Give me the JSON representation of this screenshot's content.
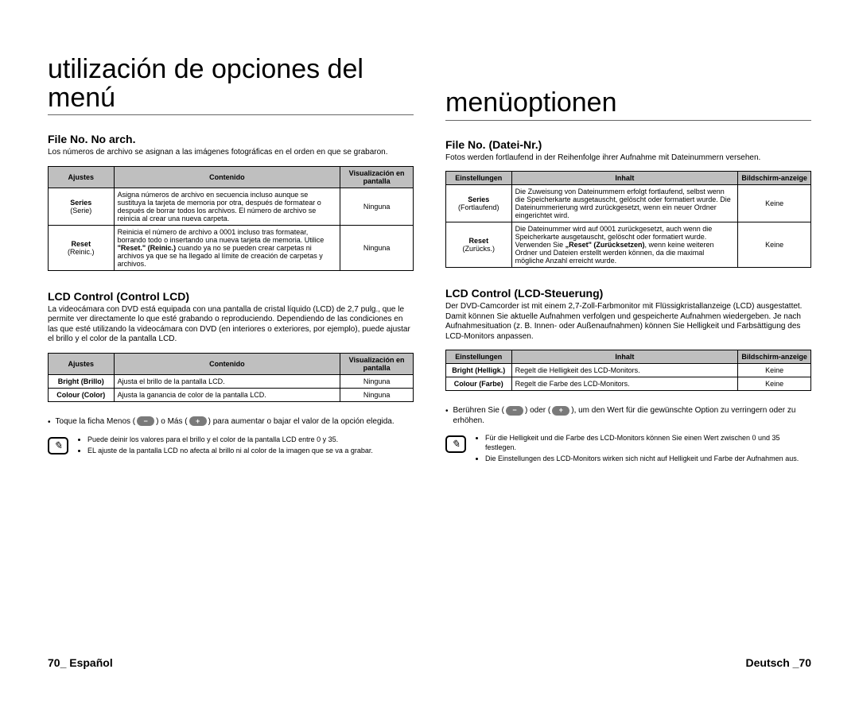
{
  "left": {
    "title": "utilización de opciones del menú",
    "section1": {
      "heading": "File No. No arch.",
      "intro": "Los números de archivo se asignan a las imágenes fotográficas en el orden en que se grabaron.",
      "table": {
        "headers": [
          "Ajustes",
          "Contenido",
          "Visualización en pantalla"
        ],
        "rows": [
          {
            "label": "Series",
            "sublabel": "(Serie)",
            "content_html": "Asigna números de archivo en secuencia incluso aunque se sustituya la tarjeta de memoria por otra, después de formatear o después de borrar todos los archivos. El número de archivo se reinicia al crear una nueva carpeta.",
            "display": "Ninguna"
          },
          {
            "label": "Reset",
            "sublabel": "(Reinic.)",
            "content_html": "Reinicia el número de archivo a 0001 incluso tras formatear, borrando todo o insertando una nueva tarjeta de memoria. Utilice <b>\"Reset.\" (Reinic.)</b> cuando ya no se pueden crear carpetas ni archivos ya que se ha llegado al límite de creación de carpetas y archivos.",
            "display": "Ninguna"
          }
        ]
      }
    },
    "section2": {
      "heading": "LCD Control (Control LCD)",
      "intro": "La videocámara con DVD está equipada con una pantalla de cristal líquido (LCD) de 2,7 pulg., que le permite ver directamente lo que esté grabando o reproduciendo. Dependiendo de las condiciones en las que esté utilizando la videocámara con DVD (en interiores o exteriores, por ejemplo), puede ajustar el brillo y el color de la pantalla LCD.",
      "table": {
        "headers": [
          "Ajustes",
          "Contenido",
          "Visualización en pantalla"
        ],
        "rows": [
          {
            "label": "Bright (Brillo)",
            "content": "Ajusta el brillo de la pantalla LCD.",
            "display": "Ninguna"
          },
          {
            "label": "Colour (Color)",
            "content": "Ajusta la ganancia de color de la pantalla LCD.",
            "display": "Ninguna"
          }
        ]
      },
      "bullet_pre": "Toque la ficha  Menos (",
      "bullet_mid": ") o Más (",
      "bullet_post": ") para aumentar o bajar el valor de la opción elegida.",
      "notes": [
        "Puede deinir los valores para el brillo y el color de la pantalla LCD entre 0 y 35.",
        "EL ajuste de la pantalla LCD no afecta al brillo ni al color de la imagen que se va a grabar."
      ]
    }
  },
  "right": {
    "title": "menüoptionen",
    "section1": {
      "heading": "File No. (Datei-Nr.)",
      "intro": "Fotos werden fortlaufend in der Reihenfolge ihrer Aufnahme mit Dateinummern versehen.",
      "table": {
        "headers": [
          "Einstellungen",
          "Inhalt",
          "Bildschirm-anzeige"
        ],
        "rows": [
          {
            "label": "Series",
            "sublabel": "(Fortlaufend)",
            "content_html": "Die Zuweisung von Dateinummern erfolgt fortlaufend, selbst wenn die Speicherkarte ausgetauscht, gelöscht oder formatiert wurde. Die Dateinummerierung wird zurückgesetzt, wenn ein neuer Ordner eingerichtet wird.",
            "display": "Keine"
          },
          {
            "label": "Reset",
            "sublabel": "(Zurücks.)",
            "content_html": "Die Dateinummer wird auf 0001 zurückgesetzt, auch wenn die Speicherkarte ausgetauscht, gelöscht oder formatiert wurde. Verwenden Sie <b>„Reset\" (Zurücksetzen)</b>, wenn keine weiteren Ordner und Dateien erstellt werden können, da die maximal mögliche Anzahl erreicht wurde.",
            "display": "Keine"
          }
        ]
      }
    },
    "section2": {
      "heading": "LCD Control (LCD-Steuerung)",
      "intro": "Der DVD-Camcorder ist mit einem 2,7-Zoll-Farbmonitor mit Flüssigkristallanzeige (LCD) ausgestattet. Damit können Sie aktuelle Aufnahmen verfolgen und gespeicherte Aufnahmen wiedergeben. Je nach Aufnahmesituation (z. B. Innen- oder Außenaufnahmen) können Sie Helligkeit und Farbsättigung des LCD-Monitors anpassen.",
      "table": {
        "headers": [
          "Einstellungen",
          "Inhalt",
          "Bildschirm-anzeige"
        ],
        "rows": [
          {
            "label": "Bright (Helligk.)",
            "content": "Regelt die Helligkeit des LCD-Monitors.",
            "display": "Keine"
          },
          {
            "label": "Colour (Farbe)",
            "content": "Regelt die Farbe des LCD-Monitors.",
            "display": "Keine"
          }
        ]
      },
      "bullet_pre": "Berühren Sie (",
      "bullet_mid": ") oder (",
      "bullet_post": "), um den Wert für die gewünschte Option zu verringern oder zu erhöhen.",
      "notes": [
        "Für die Helligkeit und die Farbe des LCD-Monitors können Sie einen Wert zwischen 0 und 35 festlegen.",
        "Die Einstellungen des LCD-Monitors wirken sich nicht auf Helligkeit und Farbe der Aufnahmen aus."
      ]
    }
  },
  "footer": {
    "left_page": "70_",
    "left_lang": "Español",
    "right_lang": "Deutsch",
    "right_page": "_70"
  },
  "icons": {
    "minus": "−",
    "plus": "+"
  },
  "colors": {
    "header_bg": "#bfbfbf",
    "pill_bg": "#7a7a7a"
  }
}
